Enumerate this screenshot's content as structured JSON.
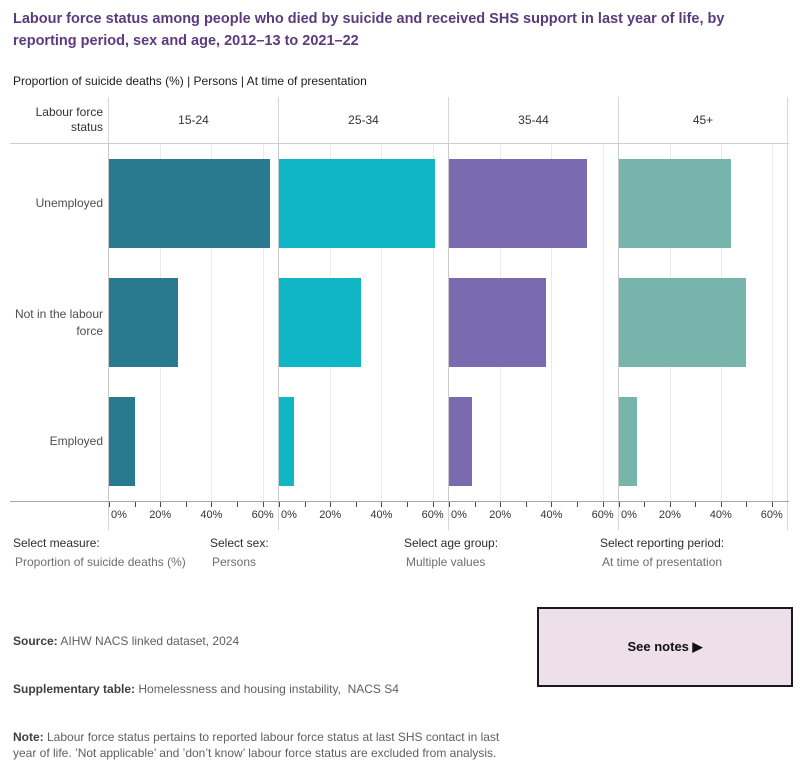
{
  "title": "Labour force status among people who died by suicide and received SHS support in last year of life, by reporting period, sex and age, 2012–13 to 2021–22",
  "subtitle": "Proportion of suicide deaths (%) | Persons | At time of presentation",
  "chart_data": {
    "type": "bar",
    "orientation": "horizontal",
    "facet_corner_label": "Labour force status",
    "panels": [
      "15-24",
      "25-34",
      "35-44",
      "45+"
    ],
    "categories": [
      "Unemployed",
      "Not in the labour force",
      "Employed"
    ],
    "series": [
      {
        "name": "15-24",
        "color": "#2A7A8F",
        "values": [
          63,
          27,
          10
        ]
      },
      {
        "name": "25-34",
        "color": "#10B6C6",
        "values": [
          61,
          32,
          6
        ]
      },
      {
        "name": "35-44",
        "color": "#7A6AAF",
        "values": [
          54,
          38,
          9
        ]
      },
      {
        "name": "45+",
        "color": "#76B4AC",
        "values": [
          44,
          50,
          7
        ]
      }
    ],
    "xlabel": "Proportion of suicide deaths (%)",
    "ylabel": "Labour force status",
    "x_ticks": [
      "0%",
      "20%",
      "40%",
      "60%"
    ],
    "xlim": [
      0,
      66
    ],
    "grid": true,
    "legend": "none"
  },
  "filters": [
    {
      "label": "Select measure:",
      "value": "Proportion of suicide deaths (%)"
    },
    {
      "label": "Select sex:",
      "value": "Persons"
    },
    {
      "label": "Select age group:",
      "value": "Multiple values"
    },
    {
      "label": "Select reporting period:",
      "value": "At time of presentation"
    }
  ],
  "notes": {
    "source_label": "Source:",
    "source_text": " AIHW NACS linked dataset, 2024",
    "supp_label": "Supplementary table:",
    "supp_text": " Homelessness and housing instability,  NACS S4",
    "note_label": "Note:",
    "note_text": " Labour force status pertains to reported labour force status at last SHS contact in last year of life. ’Not applicable’ and ’don’t know’ labour force status are excluded from analysis."
  },
  "see_notes_button": "See notes ▶",
  "colors": {
    "title": "#5C3A7E",
    "button_bg": "#EEE0EA"
  }
}
